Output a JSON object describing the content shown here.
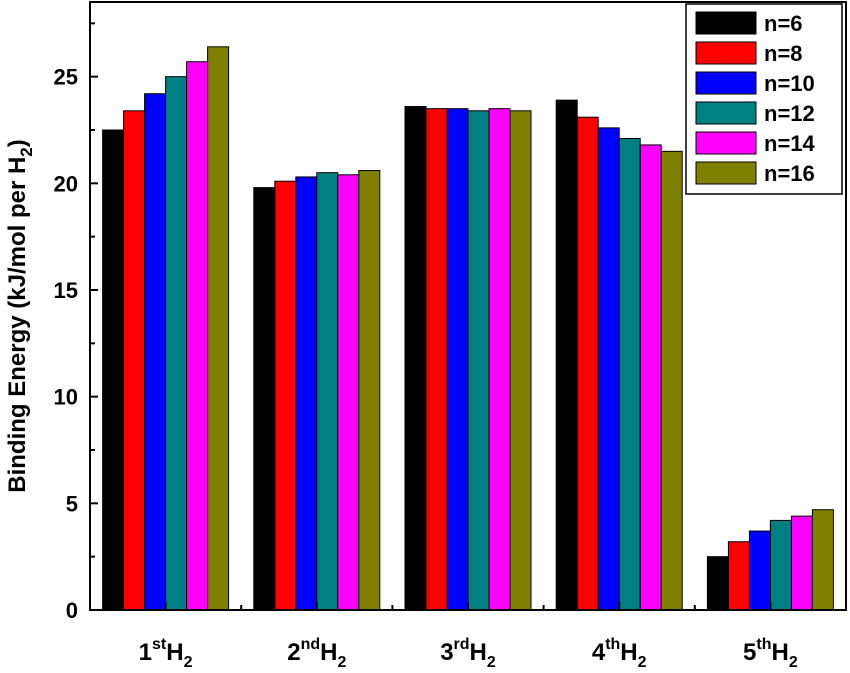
{
  "chart_data": {
    "type": "bar",
    "categories": [
      {
        "base": "1",
        "sup": "st",
        "sub_base": "H",
        "sub": "2"
      },
      {
        "base": "2",
        "sup": "nd",
        "sub_base": "H",
        "sub": "2"
      },
      {
        "base": "3",
        "sup": "rd",
        "sub_base": "H",
        "sub": "2"
      },
      {
        "base": "4",
        "sup": "th",
        "sub_base": "H",
        "sub": "2"
      },
      {
        "base": "5",
        "sup": "th",
        "sub_base": "H",
        "sub": "2"
      }
    ],
    "series": [
      {
        "name": "n=6",
        "color": "#000000",
        "values": [
          22.5,
          19.8,
          23.6,
          23.9,
          2.5
        ]
      },
      {
        "name": "n=8",
        "color": "#ff0000",
        "values": [
          23.4,
          20.1,
          23.5,
          23.1,
          3.2
        ]
      },
      {
        "name": "n=10",
        "color": "#0000ff",
        "values": [
          24.2,
          20.3,
          23.5,
          22.6,
          3.7
        ]
      },
      {
        "name": "n=12",
        "color": "#008080",
        "values": [
          25.0,
          20.5,
          23.4,
          22.1,
          4.2
        ]
      },
      {
        "name": "n=14",
        "color": "#ff00ff",
        "values": [
          25.7,
          20.4,
          23.5,
          21.8,
          4.4
        ]
      },
      {
        "name": "n=16",
        "color": "#808000",
        "values": [
          26.4,
          20.6,
          23.4,
          21.5,
          4.7
        ]
      }
    ],
    "ylabel": {
      "text": "Binding Energy (kJ/mol per H",
      "sub": "2",
      "close": ")"
    },
    "ylim": [
      0,
      28.5
    ],
    "yticks": [
      0,
      5,
      10,
      15,
      20,
      25
    ],
    "legend_position": "top-right",
    "grid": false
  }
}
